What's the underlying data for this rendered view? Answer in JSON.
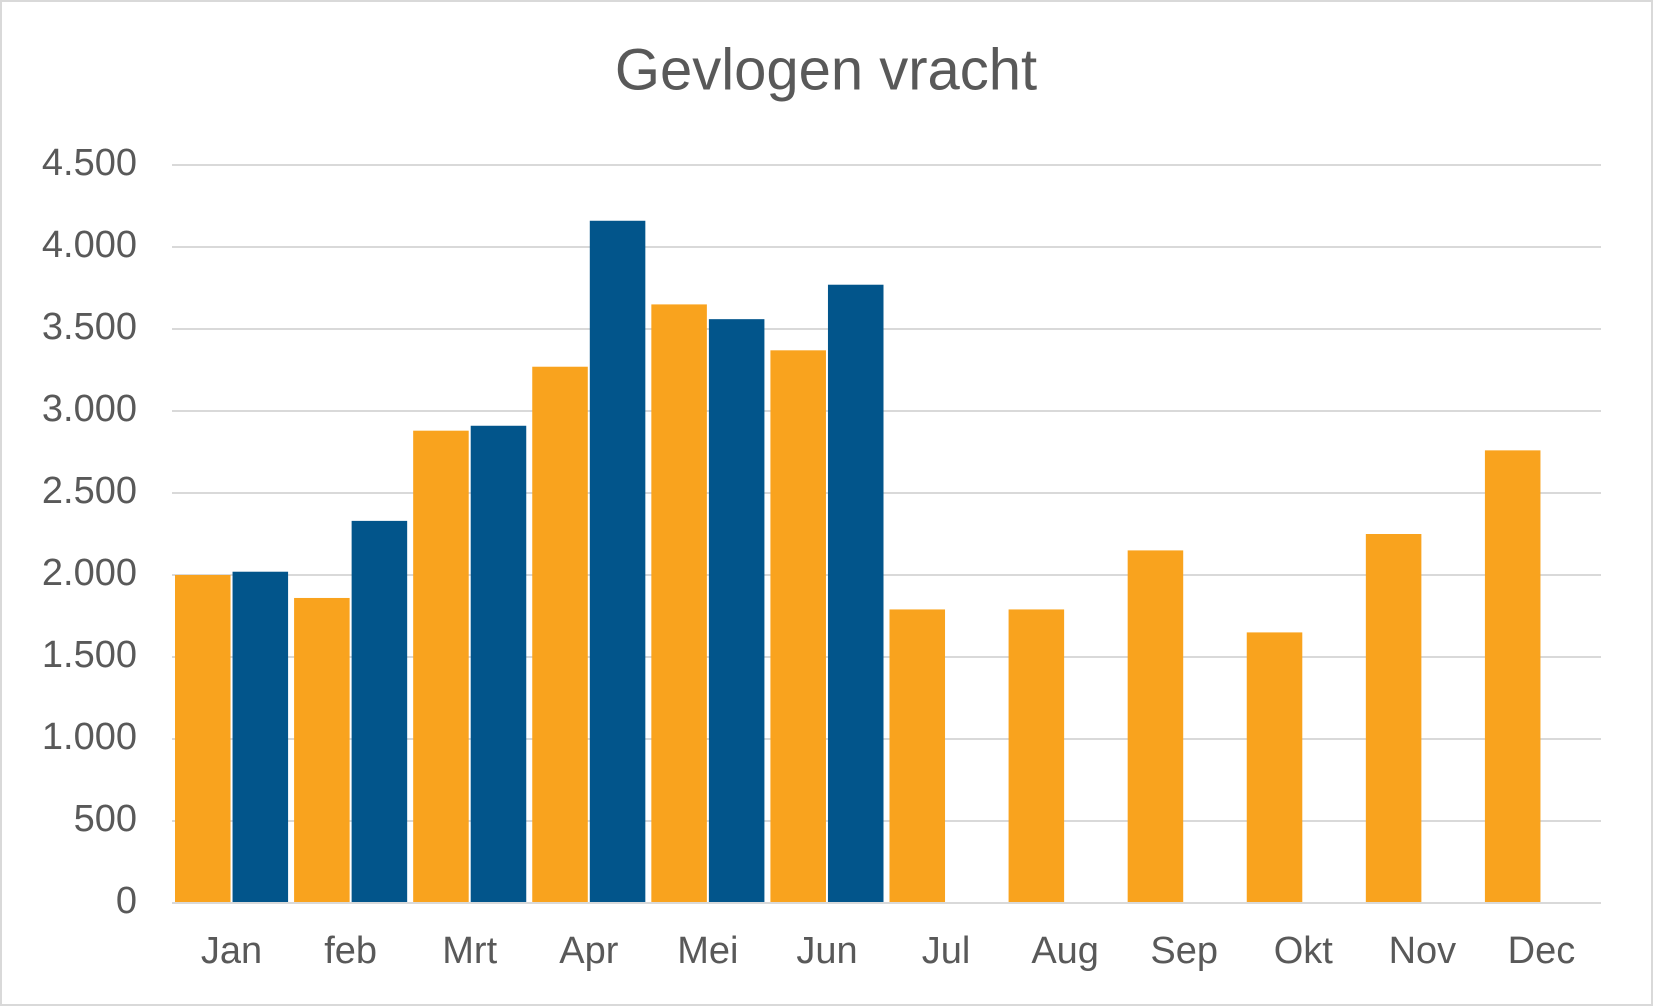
{
  "chart_data": {
    "type": "bar",
    "title": "Gevlogen vracht",
    "categories": [
      "Jan",
      "feb",
      "Mrt",
      "Apr",
      "Mei",
      "Jun",
      "Jul",
      "Aug",
      "Sep",
      "Okt",
      "Nov",
      "Dec"
    ],
    "series": [
      {
        "color": "#f9a31e",
        "values": [
          2000,
          1860,
          2880,
          3270,
          3650,
          3370,
          1790,
          1790,
          2150,
          1650,
          2250,
          2760
        ]
      },
      {
        "color": "#02558b",
        "values": [
          2020,
          2330,
          2910,
          4160,
          3560,
          3770,
          null,
          null,
          null,
          null,
          null,
          null
        ]
      }
    ],
    "ylim": [
      0,
      4500
    ],
    "yticks": [
      0,
      500,
      {
        "value": 1000,
        "label": "1.000"
      },
      {
        "value": 1500,
        "label": "1.500"
      },
      {
        "value": 2000,
        "label": "2.000"
      },
      {
        "value": 2500,
        "label": "2.500"
      },
      {
        "value": 3000,
        "label": "3.000"
      },
      {
        "value": 3500,
        "label": "3.500"
      },
      {
        "value": 4000,
        "label": "4.000"
      },
      {
        "value": 4500,
        "label": "4.500"
      }
    ],
    "grid": true
  }
}
